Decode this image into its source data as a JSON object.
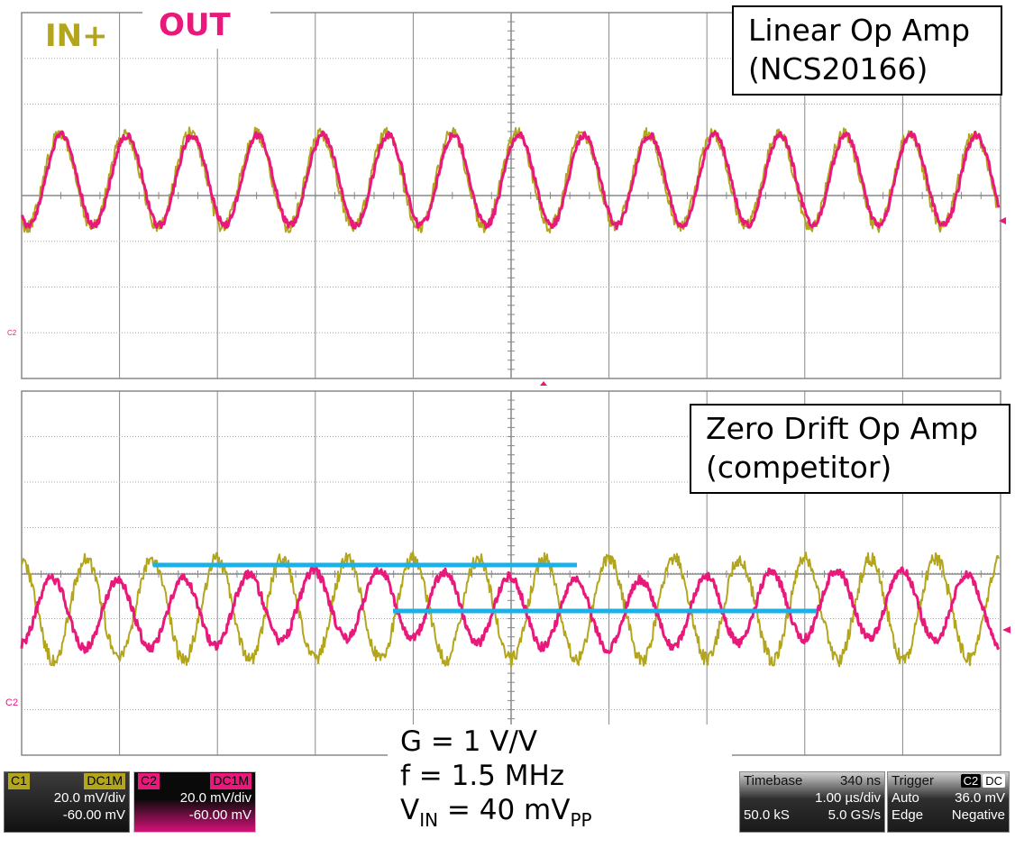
{
  "top_panel": {
    "label_line1": "Linear Op Amp",
    "label_line2": "(NCS20166)",
    "ch_marker": "C2"
  },
  "bottom_panel": {
    "label_line1": "Zero Drift Op Amp",
    "label_line2": "(competitor)",
    "ch_marker": "C2"
  },
  "legend": {
    "in_label": "IN+",
    "out_label": "OUT"
  },
  "params": {
    "gain": "G = 1 V/V",
    "freq": "f = 1.5 MHz",
    "vin_prefix": "V",
    "vin_sub1": "IN",
    "vin_mid": " = 40 mV",
    "vin_sub2": "PP"
  },
  "channel1": {
    "name": "C1",
    "coupling": "DC1M",
    "scale": "20.0 mV/div",
    "offset": "-60.00 mV",
    "color": "#b3a61c"
  },
  "channel2": {
    "name": "C2",
    "coupling": "DC1M",
    "scale": "20.0 mV/div",
    "offset": "-60.00 mV",
    "color": "#e8197a"
  },
  "timebase": {
    "title": "Timebase",
    "delay": "340 ns",
    "scale": "1.00 µs/div",
    "samples": "50.0 kS",
    "rate": "5.0 GS/s"
  },
  "trigger": {
    "title": "Trigger",
    "source": "C2",
    "coupling": "DC",
    "mode": "Auto",
    "level": "36.0 mV",
    "type": "Edge",
    "slope": "Negative"
  },
  "colors": {
    "in_trace": "#b3a61c",
    "out_trace": "#e8197a",
    "marker_line": "#1ab0e8",
    "grid": "#888888"
  }
}
